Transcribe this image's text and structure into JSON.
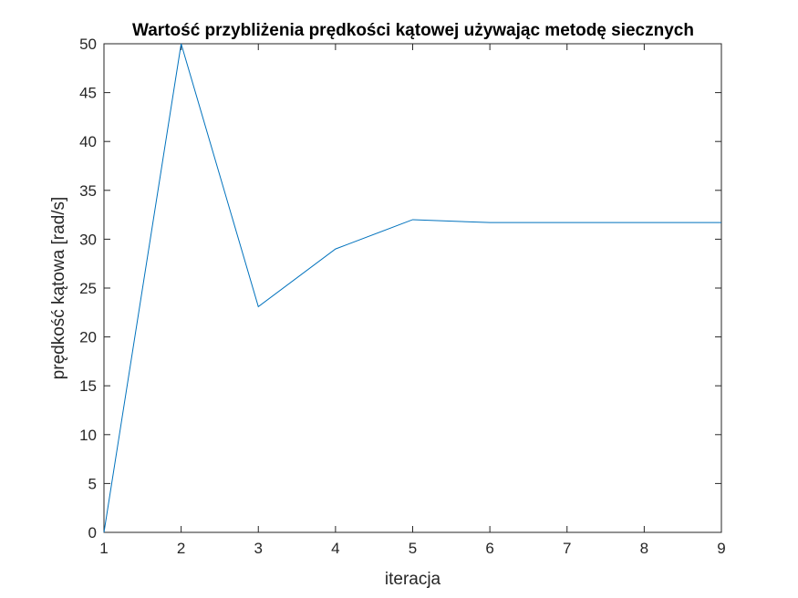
{
  "chart_data": {
    "type": "line",
    "title": "Wartość przybliżenia prędkości kątowej używając metodę siecznych",
    "xlabel": "iteracja",
    "ylabel": "prędkość kątowa [rad/s]",
    "xlim": [
      1,
      9
    ],
    "ylim": [
      0,
      50
    ],
    "xticks": [
      1,
      2,
      3,
      4,
      5,
      6,
      7,
      8,
      9
    ],
    "yticks": [
      0,
      5,
      10,
      15,
      20,
      25,
      30,
      35,
      40,
      45,
      50
    ],
    "grid": false,
    "line_color": "#0072BD",
    "series": [
      {
        "x": [
          1,
          2,
          3,
          4,
          5,
          6,
          7,
          8,
          9
        ],
        "values": [
          0,
          50,
          23.1,
          29.0,
          32.0,
          31.7,
          31.7,
          31.7,
          31.7
        ]
      }
    ]
  }
}
